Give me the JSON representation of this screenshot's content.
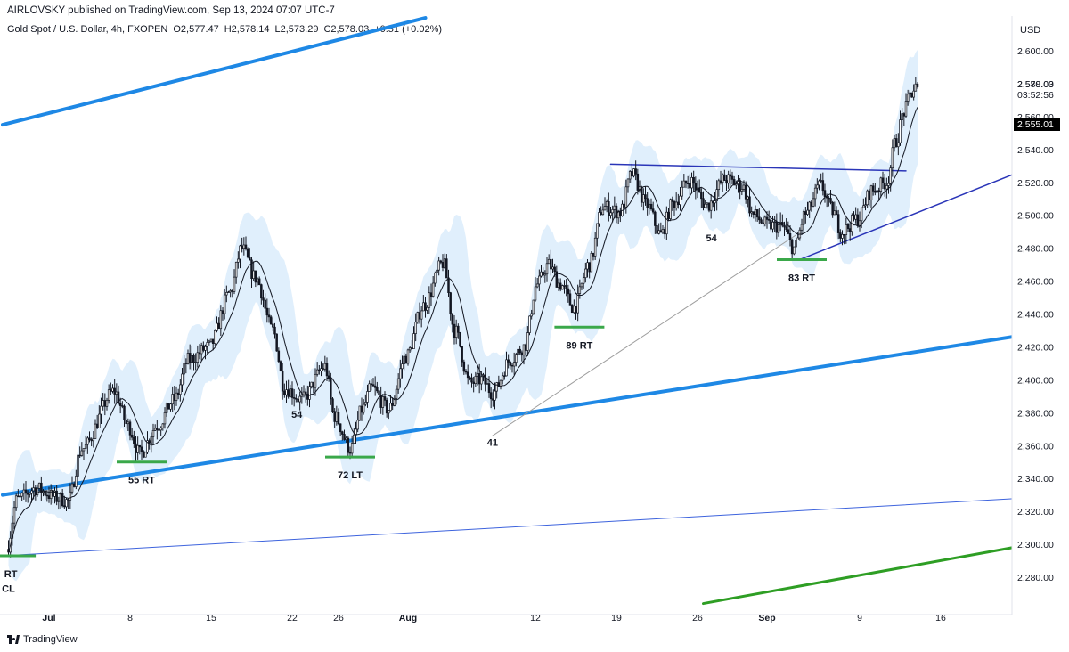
{
  "header": {
    "publish_line": "AIRLOVSKY published on TradingView.com, Sep 13, 2024 07:07 UTC-7",
    "symbol": "Gold Spot / U.S. Dollar, 4h, FXOPEN",
    "open": "O2,577.47",
    "high": "H2,578.14",
    "low": "L2,573.29",
    "close": "C2,578.03",
    "change": "+0.51 (+0.02%)"
  },
  "price_axis": {
    "currency": "USD",
    "last_price": "2,578.03",
    "countdown": "03:52:56",
    "marker_price": "2,555.01"
  },
  "footer": {
    "brand": "TradingView"
  },
  "chart_data": {
    "type": "candlestick",
    "title": "Gold Spot / U.S. Dollar, 4h, FXOPEN",
    "xlabel": "",
    "ylabel": "USD",
    "ylim": [
      2262,
      2610
    ],
    "y_ticks": [
      2600,
      2580,
      2560,
      2540,
      2520,
      2500,
      2480,
      2460,
      2440,
      2420,
      2400,
      2380,
      2360,
      2340,
      2320,
      2300,
      2280
    ],
    "y_tick_labels": [
      "2,600.00",
      "2,580.00",
      "2,560.00",
      "2,540.00",
      "2,520.00",
      "2,500.00",
      "2,480.00",
      "2,460.00",
      "2,440.00",
      "2,420.00",
      "2,400.00",
      "2,380.00",
      "2,360.00",
      "2,340.00",
      "2,320.00",
      "2,300.00",
      "2,280.00"
    ],
    "x_ticks": [
      "Jul",
      "8",
      "15",
      "22",
      "26",
      "Aug",
      "12",
      "19",
      "26",
      "Sep",
      "9",
      "16"
    ],
    "x_tick_days": [
      0,
      7,
      14,
      21,
      25,
      31,
      42,
      49,
      56,
      62,
      70,
      77
    ],
    "x_range_days": [
      -4,
      84
    ],
    "anchors": [
      {
        "d": -3.5,
        "p": 2297
      },
      {
        "d": -2.6,
        "p": 2327
      },
      {
        "d": -1.0,
        "p": 2334
      },
      {
        "d": 1.0,
        "p": 2328
      },
      {
        "d": 1.8,
        "p": 2326
      },
      {
        "d": 3.0,
        "p": 2358
      },
      {
        "d": 5.8,
        "p": 2393
      },
      {
        "d": 7.0,
        "p": 2372
      },
      {
        "d": 8.0,
        "p": 2355
      },
      {
        "d": 9.5,
        "p": 2372
      },
      {
        "d": 11.0,
        "p": 2388
      },
      {
        "d": 12.2,
        "p": 2412
      },
      {
        "d": 14.0,
        "p": 2420
      },
      {
        "d": 15.8,
        "p": 2453
      },
      {
        "d": 16.8,
        "p": 2480
      },
      {
        "d": 18.0,
        "p": 2462
      },
      {
        "d": 19.5,
        "p": 2430
      },
      {
        "d": 20.5,
        "p": 2395
      },
      {
        "d": 22.0,
        "p": 2388
      },
      {
        "d": 24.0,
        "p": 2408
      },
      {
        "d": 24.8,
        "p": 2378
      },
      {
        "d": 26.2,
        "p": 2358
      },
      {
        "d": 27.2,
        "p": 2382
      },
      {
        "d": 28.0,
        "p": 2395
      },
      {
        "d": 29.5,
        "p": 2382
      },
      {
        "d": 31.0,
        "p": 2414
      },
      {
        "d": 32.5,
        "p": 2445
      },
      {
        "d": 34.2,
        "p": 2471
      },
      {
        "d": 35.2,
        "p": 2430
      },
      {
        "d": 36.5,
        "p": 2398
      },
      {
        "d": 37.5,
        "p": 2400
      },
      {
        "d": 38.5,
        "p": 2392
      },
      {
        "d": 40.0,
        "p": 2412
      },
      {
        "d": 41.2,
        "p": 2420
      },
      {
        "d": 42.3,
        "p": 2458
      },
      {
        "d": 43.3,
        "p": 2470
      },
      {
        "d": 44.3,
        "p": 2458
      },
      {
        "d": 45.5,
        "p": 2444
      },
      {
        "d": 46.8,
        "p": 2470
      },
      {
        "d": 48.0,
        "p": 2505
      },
      {
        "d": 49.5,
        "p": 2502
      },
      {
        "d": 50.5,
        "p": 2525
      },
      {
        "d": 51.8,
        "p": 2506
      },
      {
        "d": 53.0,
        "p": 2488
      },
      {
        "d": 54.0,
        "p": 2507
      },
      {
        "d": 55.5,
        "p": 2521
      },
      {
        "d": 57.0,
        "p": 2506
      },
      {
        "d": 58.5,
        "p": 2522
      },
      {
        "d": 60.0,
        "p": 2518
      },
      {
        "d": 61.0,
        "p": 2500
      },
      {
        "d": 62.2,
        "p": 2494
      },
      {
        "d": 63.5,
        "p": 2493
      },
      {
        "d": 64.5,
        "p": 2480
      },
      {
        "d": 65.5,
        "p": 2501
      },
      {
        "d": 66.8,
        "p": 2518
      },
      {
        "d": 67.8,
        "p": 2503
      },
      {
        "d": 68.6,
        "p": 2490
      },
      {
        "d": 70.0,
        "p": 2498
      },
      {
        "d": 71.2,
        "p": 2515
      },
      {
        "d": 72.5,
        "p": 2520
      },
      {
        "d": 73.3,
        "p": 2545
      },
      {
        "d": 74.0,
        "p": 2563
      },
      {
        "d": 74.6,
        "p": 2574
      },
      {
        "d": 75.0,
        "p": 2578.03
      }
    ],
    "trendlines": [
      {
        "name": "upper-channel",
        "color": "#1e88e5",
        "width": 4,
        "points": [
          [
            -4,
            2555
          ],
          [
            32.5,
            2620
          ]
        ]
      },
      {
        "name": "mid-channel",
        "color": "#1e88e5",
        "width": 4,
        "points": [
          [
            -4,
            2330
          ],
          [
            84,
            2427
          ]
        ]
      },
      {
        "name": "lower-channel",
        "color": "#3d63dd",
        "width": 1,
        "points": [
          [
            -4,
            2293
          ],
          [
            84,
            2328
          ]
        ]
      },
      {
        "name": "green-trend",
        "color": "#2e9e24",
        "width": 3,
        "points": [
          [
            56.5,
            2264
          ],
          [
            84,
            2299
          ]
        ]
      },
      {
        "name": "rising-trend",
        "color": "#9e9e9e",
        "width": 1,
        "points": [
          [
            38.3,
            2366
          ],
          [
            64.5,
            2488
          ]
        ]
      },
      {
        "name": "triangle-top",
        "color": "#2a35b8",
        "width": 1.5,
        "points": [
          [
            48.5,
            2531
          ],
          [
            74.0,
            2527
          ]
        ]
      },
      {
        "name": "triangle-bottom",
        "color": "#2a35b8",
        "width": 1.5,
        "points": [
          [
            64.8,
            2473
          ],
          [
            84,
            2527
          ]
        ]
      },
      {
        "name": "aug-support",
        "color": "#2a35b8",
        "width": 1.5,
        "points": [
          [
            38.3,
            2366
          ],
          [
            38.3,
            2366
          ]
        ]
      }
    ],
    "support_marks": [
      {
        "label": "55 RT",
        "d": 8.0,
        "p": 2350
      },
      {
        "label": "72 LT",
        "d": 26.0,
        "p": 2353
      },
      {
        "label": "89 RT",
        "d": 45.8,
        "p": 2432
      },
      {
        "label": "83 RT",
        "d": 65.0,
        "p": 2473
      },
      {
        "label": "RT",
        "d": -3.3,
        "p": 2293
      }
    ],
    "text_marks": [
      {
        "label": "54",
        "d": 21.4,
        "p": 2377
      },
      {
        "label": "41",
        "d": 38.3,
        "p": 2360
      },
      {
        "label": "54",
        "d": 57.2,
        "p": 2484
      },
      {
        "label": "CL",
        "d": -3.5,
        "p": 2271
      }
    ],
    "series": [
      {
        "name": "",
        "kind": "candles",
        "color": "#131722"
      },
      {
        "name": "",
        "kind": "moving-average",
        "color": "#131722"
      },
      {
        "name": "",
        "kind": "envelope-band",
        "color": "#d6e9fb"
      }
    ]
  }
}
